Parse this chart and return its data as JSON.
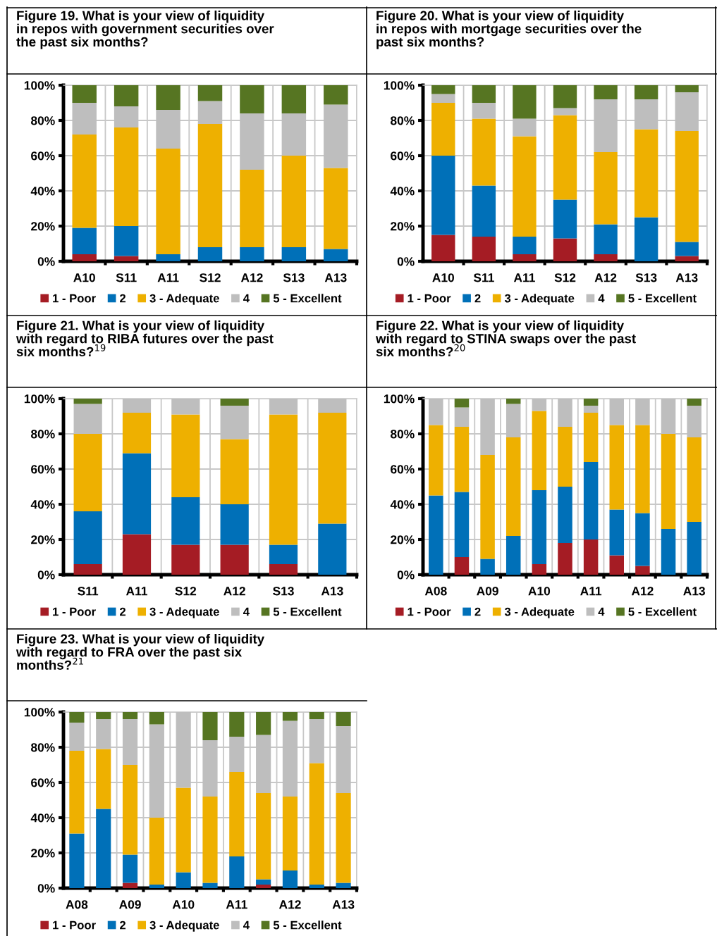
{
  "chart_data": [
    {
      "type": "bar",
      "title": "Figure 19. What is your view of liquidity\nin repos with government securities over\nthe past six months?",
      "stacked": true,
      "categories": [
        "A10",
        "S11",
        "A11",
        "S12",
        "A12",
        "S13",
        "A13"
      ],
      "series": [
        {
          "name": "1 - Poor",
          "color": "#a51c24",
          "values": [
            4,
            3,
            0,
            0,
            0,
            0,
            0
          ]
        },
        {
          "name": "2",
          "color": "#0070b8",
          "values": [
            15,
            17,
            4,
            8,
            8,
            8,
            7
          ]
        },
        {
          "name": "3 - Adequate",
          "color": "#eeb000",
          "values": [
            53,
            56,
            60,
            70,
            44,
            52,
            46
          ]
        },
        {
          "name": "4",
          "color": "#bebebe",
          "values": [
            18,
            12,
            22,
            13,
            32,
            24,
            36
          ]
        },
        {
          "name": "5 - Excellent",
          "color": "#567522",
          "values": [
            10,
            12,
            14,
            9,
            16,
            16,
            11
          ]
        }
      ],
      "ylim": [
        0,
        100
      ],
      "yticks": [
        {
          "value": 0,
          "label": "0%"
        },
        {
          "value": 20,
          "label": "20%"
        },
        {
          "value": 40,
          "label": "40%"
        },
        {
          "value": 60,
          "label": "60%"
        },
        {
          "value": 80,
          "label": "80%"
        },
        {
          "value": 100,
          "label": "100%"
        }
      ],
      "grid": true,
      "legend": "bottom"
    },
    {
      "type": "bar",
      "title": "Figure 20. What is your view of liquidity\nin repos with mortgage securities over the\npast six months?",
      "stacked": true,
      "categories": [
        "A10",
        "S11",
        "A11",
        "S12",
        "A12",
        "S13",
        "A13"
      ],
      "series": [
        {
          "name": "1 - Poor",
          "color": "#a51c24",
          "values": [
            15,
            14,
            4,
            13,
            4,
            0,
            3
          ]
        },
        {
          "name": "2",
          "color": "#0070b8",
          "values": [
            45,
            29,
            10,
            22,
            17,
            25,
            8
          ]
        },
        {
          "name": "3 - Adequate",
          "color": "#eeb000",
          "values": [
            30,
            38,
            57,
            48,
            41,
            50,
            63
          ]
        },
        {
          "name": "4",
          "color": "#bebebe",
          "values": [
            5,
            9,
            10,
            4,
            30,
            17,
            22
          ]
        },
        {
          "name": "5 - Excellent",
          "color": "#567522",
          "values": [
            5,
            10,
            19,
            13,
            8,
            8,
            4
          ]
        }
      ],
      "ylim": [
        0,
        100
      ],
      "yticks": [
        {
          "value": 0,
          "label": "0%"
        },
        {
          "value": 20,
          "label": "20%"
        },
        {
          "value": 40,
          "label": "40%"
        },
        {
          "value": 60,
          "label": "60%"
        },
        {
          "value": 80,
          "label": "80%"
        },
        {
          "value": 100,
          "label": "100%"
        }
      ],
      "grid": true,
      "legend": "bottom"
    },
    {
      "type": "bar",
      "title": "Figure 21. What is your view of liquidity\nwith regard to RIBA futures over the past\nsix months?$^{19}$",
      "stacked": true,
      "categories": [
        "S11",
        "A11",
        "S12",
        "A12",
        "S13",
        "A13"
      ],
      "series": [
        {
          "name": "1 - Poor",
          "color": "#a51c24",
          "values": [
            6,
            23,
            17,
            17,
            6,
            0
          ]
        },
        {
          "name": "2",
          "color": "#0070b8",
          "values": [
            30,
            46,
            27,
            23,
            11,
            29
          ]
        },
        {
          "name": "3 - Adequate",
          "color": "#eeb000",
          "values": [
            44,
            23,
            47,
            37,
            74,
            63
          ]
        },
        {
          "name": "4",
          "color": "#bebebe",
          "values": [
            17,
            8,
            9,
            19,
            9,
            8
          ]
        },
        {
          "name": "5 - Excellent",
          "color": "#567522",
          "values": [
            3,
            0,
            0,
            4,
            0,
            0
          ]
        }
      ],
      "ylim": [
        0,
        100
      ],
      "yticks": [
        {
          "value": 0,
          "label": "0%"
        },
        {
          "value": 20,
          "label": "20%"
        },
        {
          "value": 40,
          "label": "40%"
        },
        {
          "value": 60,
          "label": "60%"
        },
        {
          "value": 80,
          "label": "80%"
        },
        {
          "value": 100,
          "label": "100%"
        }
      ],
      "grid": true,
      "legend": "bottom"
    },
    {
      "type": "bar",
      "title": "Figure 22. What is your view of liquidity\nwith regard to STINA swaps over the past\nsix months?$^{20}$",
      "stacked": true,
      "categories": [
        "A08",
        null,
        "A09",
        null,
        "A10",
        null,
        "A11",
        null,
        "A12",
        null,
        "A13"
      ],
      "series": [
        {
          "name": "1 - Poor",
          "color": "#a51c24",
          "values": [
            0,
            10,
            0,
            0,
            6,
            18,
            20,
            11,
            5,
            0,
            0
          ]
        },
        {
          "name": "2",
          "color": "#0070b8",
          "values": [
            45,
            37,
            9,
            22,
            42,
            32,
            44,
            26,
            30,
            26,
            30
          ]
        },
        {
          "name": "3 - Adequate",
          "color": "#eeb000",
          "values": [
            40,
            37,
            59,
            56,
            45,
            34,
            28,
            48,
            50,
            54,
            48
          ]
        },
        {
          "name": "4",
          "color": "#bebebe",
          "values": [
            15,
            11,
            32,
            19,
            7,
            16,
            4,
            15,
            15,
            20,
            18
          ]
        },
        {
          "name": "5 - Excellent",
          "color": "#567522",
          "values": [
            0,
            5,
            0,
            3,
            0,
            0,
            4,
            0,
            0,
            0,
            4
          ]
        }
      ],
      "ylim": [
        0,
        100
      ],
      "yticks": [
        {
          "value": 0,
          "label": "0%"
        },
        {
          "value": 20,
          "label": "20%"
        },
        {
          "value": 40,
          "label": "40%"
        },
        {
          "value": 60,
          "label": "60%"
        },
        {
          "value": 80,
          "label": "80%"
        },
        {
          "value": 100,
          "label": "100%"
        }
      ],
      "grid": true,
      "legend": "bottom"
    },
    {
      "type": "bar",
      "title": "Figure 23. What is your view of liquidity\nwith regard to FRA over the past six\nmonths?$^{21}$",
      "stacked": true,
      "categories": [
        "A08",
        null,
        "A09",
        null,
        "A10",
        null,
        "A11",
        null,
        "A12",
        null,
        "A13"
      ],
      "series": [
        {
          "name": "1 - Poor",
          "color": "#a51c24",
          "values": [
            0,
            0,
            3,
            0,
            0,
            0,
            0,
            2,
            0,
            0,
            0
          ]
        },
        {
          "name": "2",
          "color": "#0070b8",
          "values": [
            31,
            45,
            16,
            2,
            9,
            3,
            18,
            3,
            10,
            2,
            3
          ]
        },
        {
          "name": "3 - Adequate",
          "color": "#eeb000",
          "values": [
            47,
            34,
            51,
            38,
            48,
            49,
            48,
            49,
            42,
            69,
            51
          ]
        },
        {
          "name": "4",
          "color": "#bebebe",
          "values": [
            16,
            17,
            26,
            53,
            43,
            32,
            20,
            33,
            43,
            25,
            38
          ]
        },
        {
          "name": "5 - Excellent",
          "color": "#567522",
          "values": [
            6,
            4,
            4,
            7,
            0,
            16,
            14,
            13,
            5,
            4,
            8
          ]
        }
      ],
      "ylim": [
        0,
        100
      ],
      "yticks": [
        {
          "value": 0,
          "label": "0%"
        },
        {
          "value": 20,
          "label": "20%"
        },
        {
          "value": 40,
          "label": "40%"
        },
        {
          "value": 60,
          "label": "60%"
        },
        {
          "value": 80,
          "label": "80%"
        },
        {
          "value": 100,
          "label": "100%"
        }
      ],
      "grid": true,
      "legend": "bottom"
    }
  ]
}
